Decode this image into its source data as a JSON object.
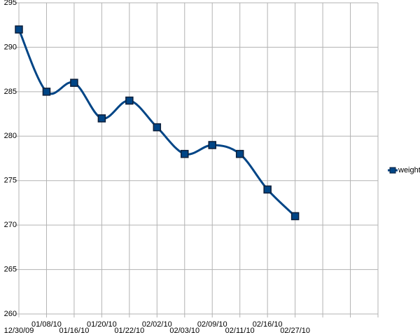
{
  "chart_data": {
    "type": "line",
    "categories": [
      "12/30/09",
      "01/08/10",
      "01/16/10",
      "01/20/10",
      "01/22/10",
      "02/02/10",
      "02/03/10",
      "02/09/10",
      "02/11/10",
      "02/16/10",
      "02/27/10",
      null,
      null,
      null
    ],
    "series": [
      {
        "name": "weight",
        "color": "#004586",
        "values": [
          292,
          285,
          286,
          282,
          284,
          281,
          278,
          279,
          278,
          274,
          271,
          null,
          null,
          null
        ]
      }
    ],
    "ylim": [
      260,
      295
    ],
    "yticks": [
      260,
      265,
      270,
      275,
      280,
      285,
      290,
      295
    ],
    "grid": true,
    "smooth": true,
    "legend": "right"
  }
}
